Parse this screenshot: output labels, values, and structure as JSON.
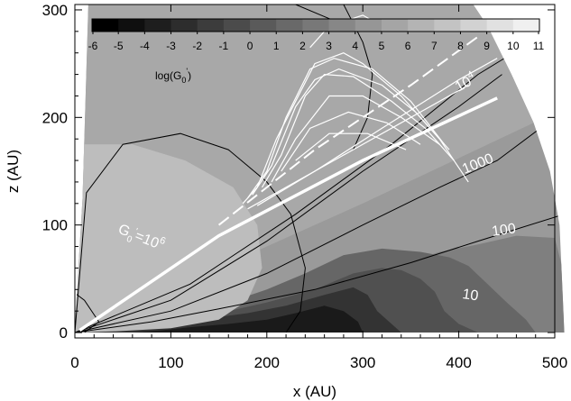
{
  "chart_data": {
    "type": "heatmap",
    "title": "",
    "xlabel": "x (AU)",
    "ylabel": "z (AU)",
    "xlim": [
      0,
      500
    ],
    "ylim": [
      -5,
      305
    ],
    "xticks": [
      0,
      100,
      200,
      300,
      400,
      500
    ],
    "yticks": [
      0,
      100,
      200,
      300
    ],
    "colorbar": {
      "label_main": "log(G",
      "label_sub": "0",
      "label_sup": "'",
      "label_end": ")",
      "ticks": [
        -6,
        -5,
        -4,
        -3,
        -2,
        -1,
        0,
        1,
        2,
        3,
        4,
        5,
        6,
        7,
        8,
        9,
        10,
        11
      ],
      "tick_labels": [
        "-6",
        "-5",
        "-4",
        "-3",
        "-2",
        "-1",
        "0",
        "1",
        "2",
        "3",
        "4",
        "5",
        "6",
        "7",
        "8",
        "9",
        "10",
        "11"
      ],
      "colors": [
        "#000000",
        "#0f0f0f",
        "#1e1e1e",
        "#2d2d2d",
        "#3c3c3c",
        "#4b4b4b",
        "#5a5a5a",
        "#696969",
        "#787878",
        "#878787",
        "#969696",
        "#a5a5a5",
        "#b4b4b4",
        "#c3c3c3",
        "#d2d2d2",
        "#e1e1e1",
        "#f0f0f0"
      ]
    },
    "annotations": [
      {
        "text_main": "G",
        "text_sub": "0",
        "text_sup": "'",
        "text_eq": "=10",
        "text_exp": "6"
      },
      {
        "text_main": "10",
        "text_exp": "4"
      },
      {
        "text": "1000"
      },
      {
        "text": "100"
      },
      {
        "text": "10"
      }
    ]
  }
}
